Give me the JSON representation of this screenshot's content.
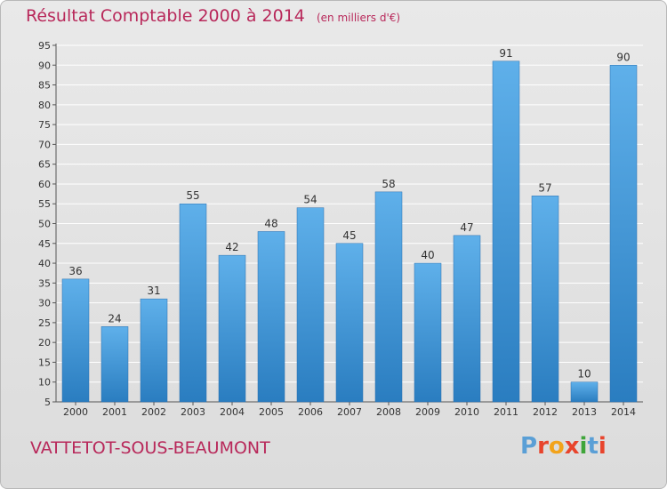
{
  "header": {
    "title": "Résultat Comptable 2000 à 2014",
    "subtitle": "(en milliers d'€)"
  },
  "footer": {
    "place": "VATTETOT-SOUS-BEAUMONT",
    "logo_letters": [
      "P",
      "r",
      "o",
      "x",
      "i",
      "t",
      "i"
    ],
    "logo_colors": [
      "#5a9fd6",
      "#e8442c",
      "#f2a31b",
      "#e8442c",
      "#3fa53a",
      "#5a9fd6",
      "#e8442c"
    ]
  },
  "chart_data": {
    "type": "bar",
    "title": "Résultat Comptable 2000 à 2014",
    "categories": [
      "2000",
      "2001",
      "2002",
      "2003",
      "2004",
      "2005",
      "2006",
      "2007",
      "2008",
      "2009",
      "2010",
      "2011",
      "2012",
      "2013",
      "2014"
    ],
    "values": [
      36,
      24,
      31,
      55,
      42,
      48,
      54,
      45,
      58,
      40,
      47,
      91,
      57,
      10,
      90
    ],
    "ylim": [
      5,
      95
    ],
    "yticks": [
      5,
      10,
      15,
      20,
      25,
      30,
      35,
      40,
      45,
      50,
      55,
      60,
      65,
      70,
      75,
      80,
      85,
      90,
      95
    ],
    "grid": true,
    "colors": {
      "bar_top": "#5fb0ea",
      "bar_bottom": "#2a7dc0",
      "grid": "#ffffff"
    }
  }
}
